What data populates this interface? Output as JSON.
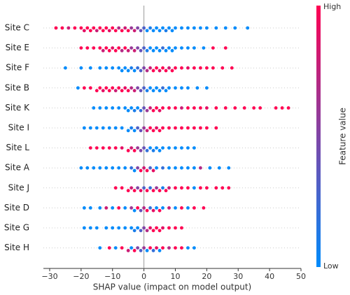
{
  "chart_data": {
    "type": "beeswarm",
    "xlabel": "SHAP value (impact on model output)",
    "xlim": [
      -32,
      50
    ],
    "xticks": [
      {
        "value": -30,
        "label": "−30"
      },
      {
        "value": -20,
        "label": "−20"
      },
      {
        "value": -10,
        "label": "−10"
      },
      0,
      10,
      20,
      30,
      40,
      50
    ],
    "colorbar": {
      "label": "Feature value",
      "high": "High",
      "low": "Low",
      "colors": [
        "#008bfb",
        "#ff0052"
      ]
    },
    "grid": true,
    "series": [
      {
        "name": "Site C",
        "values": [
          -28,
          -26,
          -24,
          -22,
          -20,
          -19,
          -18,
          -17,
          -16,
          -15,
          -14,
          -13,
          -12,
          -11,
          -10,
          -9,
          -8,
          -7,
          -6,
          -5,
          -4,
          -3,
          -2,
          -1,
          0,
          1,
          2,
          3,
          4,
          5,
          6,
          7,
          8,
          9,
          10,
          12,
          14,
          16,
          18,
          20,
          23,
          26,
          29,
          33
        ],
        "features": [
          1,
          1,
          0.8,
          1,
          1,
          0.9,
          1,
          1,
          1,
          0.8,
          1,
          1,
          1,
          0.9,
          1,
          1,
          0.7,
          1,
          0.8,
          1,
          0.6,
          0.8,
          0.5,
          0.4,
          0.3,
          0,
          0.1,
          0,
          0,
          0,
          0,
          0.1,
          0,
          0,
          0,
          0,
          0,
          0,
          0,
          0,
          0,
          0,
          0,
          0
        ]
      },
      {
        "name": "Site E",
        "values": [
          -20,
          -18,
          -16,
          -14,
          -13,
          -12,
          -11,
          -10,
          -9,
          -8,
          -7,
          -6,
          -5,
          -4,
          -3,
          -2,
          -1,
          0,
          1,
          2,
          3,
          4,
          5,
          6,
          7,
          8,
          9,
          10,
          12,
          14,
          16,
          19,
          22,
          26
        ],
        "features": [
          1,
          1,
          1,
          1,
          0.8,
          1,
          1,
          0.9,
          1,
          1,
          0.7,
          1,
          0.8,
          0.6,
          0.8,
          0.5,
          0.4,
          0.3,
          0.1,
          0,
          0,
          0,
          0,
          0.2,
          0,
          0,
          0,
          0,
          0,
          0,
          0,
          0,
          1,
          1
        ]
      },
      {
        "name": "Site F",
        "values": [
          -25,
          -20,
          -17,
          -14,
          -12,
          -10,
          -8,
          -7,
          -6,
          -5,
          -4,
          -3,
          -2,
          -1,
          0,
          1,
          2,
          3,
          4,
          5,
          6,
          7,
          8,
          9,
          10,
          12,
          14,
          16,
          18,
          20,
          22,
          25,
          28
        ],
        "features": [
          0,
          0,
          0,
          0,
          0,
          0,
          0,
          0,
          0,
          0,
          0.1,
          0,
          0.2,
          0.3,
          0.5,
          0.7,
          0.8,
          1,
          1,
          0.9,
          1,
          1,
          0.8,
          1,
          1,
          1,
          0.9,
          1,
          1,
          1,
          1,
          1,
          1
        ]
      },
      {
        "name": "Site B",
        "values": [
          -21,
          -19,
          -17,
          -15,
          -14,
          -13,
          -12,
          -11,
          -10,
          -9,
          -8,
          -7,
          -6,
          -5,
          -4,
          -3,
          -2,
          -1,
          0,
          1,
          2,
          3,
          4,
          5,
          6,
          7,
          8,
          10,
          12,
          14,
          17,
          20
        ],
        "features": [
          0,
          1,
          1,
          1,
          1,
          0.9,
          1,
          1,
          1,
          0.8,
          1,
          1,
          0.9,
          1,
          0.7,
          0.8,
          0.5,
          0.4,
          0.3,
          0.1,
          0,
          0,
          0,
          0,
          0.2,
          0,
          0,
          0,
          0,
          0,
          0,
          0
        ]
      },
      {
        "name": "Site K",
        "values": [
          -16,
          -14,
          -12,
          -10,
          -8,
          -6,
          -5,
          -4,
          -3,
          -2,
          -1,
          0,
          1,
          2,
          3,
          4,
          5,
          6,
          8,
          10,
          12,
          14,
          16,
          18,
          20,
          23,
          26,
          29,
          32,
          35,
          37,
          42,
          44,
          46
        ],
        "features": [
          0,
          0,
          0,
          0,
          0,
          0,
          0,
          0,
          0.1,
          0,
          0.2,
          0.4,
          0.6,
          0.8,
          1,
          1,
          0.9,
          1,
          1,
          1,
          0.8,
          1,
          1,
          1,
          0.9,
          1,
          1,
          1,
          1,
          1,
          1,
          1,
          1,
          1
        ]
      },
      {
        "name": "Site I",
        "values": [
          -19,
          -17,
          -15,
          -13,
          -11,
          -9,
          -7,
          -5,
          -4,
          -3,
          -2,
          -1,
          0,
          1,
          2,
          3,
          4,
          5,
          6,
          8,
          10,
          12,
          14,
          16,
          18,
          20,
          23
        ],
        "features": [
          0,
          0,
          0,
          0,
          0,
          0,
          0,
          0,
          0.1,
          0,
          0.3,
          0.4,
          0.6,
          0.8,
          1,
          1,
          0.9,
          1,
          1,
          1,
          1,
          1,
          1,
          1,
          1,
          1,
          1
        ]
      },
      {
        "name": "Site L",
        "values": [
          -17,
          -15,
          -13,
          -11,
          -9,
          -7,
          -5,
          -4,
          -3,
          -2,
          -1,
          0,
          1,
          2,
          3,
          4,
          5,
          6,
          8,
          10,
          12,
          14,
          16
        ],
        "features": [
          1,
          1,
          1,
          1,
          1,
          0.9,
          1,
          0.8,
          1,
          0.6,
          0.5,
          0.4,
          0.2,
          0,
          0.1,
          0,
          0,
          0,
          0,
          0,
          0,
          0,
          0
        ]
      },
      {
        "name": "Site A",
        "values": [
          -20,
          -18,
          -16,
          -14,
          -12,
          -10,
          -8,
          -6,
          -4,
          -3,
          -2,
          -1,
          0,
          1,
          2,
          3,
          4,
          6,
          8,
          10,
          12,
          14,
          16,
          18,
          21,
          24,
          27
        ],
        "features": [
          0,
          0,
          0,
          0,
          0,
          0,
          0,
          0,
          0.2,
          0,
          0.5,
          1,
          0.8,
          1,
          0.3,
          0.9,
          0,
          0.2,
          0,
          0,
          0,
          0,
          0,
          0.7,
          0,
          0,
          0
        ]
      },
      {
        "name": "Site J",
        "values": [
          -9,
          -7,
          -5,
          -4,
          -3,
          -2,
          -1,
          0,
          1,
          2,
          3,
          4,
          5,
          6,
          7,
          8,
          10,
          12,
          14,
          16,
          18,
          20,
          23,
          25,
          27
        ],
        "features": [
          1,
          1,
          1,
          0.8,
          1,
          0.5,
          0.9,
          0.3,
          1,
          0.2,
          1,
          0.6,
          1,
          0.1,
          1,
          0.8,
          1,
          1,
          1,
          0,
          1,
          1,
          1,
          1,
          1
        ]
      },
      {
        "name": "Site D",
        "values": [
          -19,
          -17,
          -14,
          -12,
          -10,
          -8,
          -6,
          -4,
          -3,
          -2,
          -1,
          0,
          1,
          2,
          3,
          4,
          5,
          6,
          8,
          10,
          12,
          14,
          16,
          19
        ],
        "features": [
          0,
          0,
          0,
          0.8,
          0,
          1,
          0,
          0.6,
          0,
          1,
          0.4,
          0.7,
          1,
          0.2,
          0.9,
          0,
          1,
          0,
          0.8,
          0,
          1,
          0,
          1,
          1
        ]
      },
      {
        "name": "Site G",
        "values": [
          -19,
          -17,
          -15,
          -12,
          -10,
          -8,
          -6,
          -4,
          -3,
          -2,
          -1,
          0,
          1,
          2,
          3,
          4,
          5,
          6,
          8,
          10,
          12
        ],
        "features": [
          0,
          0,
          0,
          0,
          0,
          0,
          0,
          0,
          0.1,
          0,
          0.3,
          0.5,
          0.7,
          0.9,
          1,
          1,
          1,
          0.9,
          1,
          1,
          1
        ]
      },
      {
        "name": "Site H",
        "values": [
          -14,
          -11,
          -9,
          -7,
          -5,
          -4,
          -3,
          -2,
          -1,
          0,
          1,
          2,
          3,
          4,
          5,
          6,
          8,
          10,
          12,
          14,
          16
        ],
        "features": [
          0,
          1,
          0,
          1,
          0.8,
          0,
          1,
          0.5,
          0.3,
          0.6,
          0,
          1,
          0.2,
          0.9,
          0,
          1,
          0.7,
          1,
          1,
          0,
          0
        ]
      }
    ]
  }
}
